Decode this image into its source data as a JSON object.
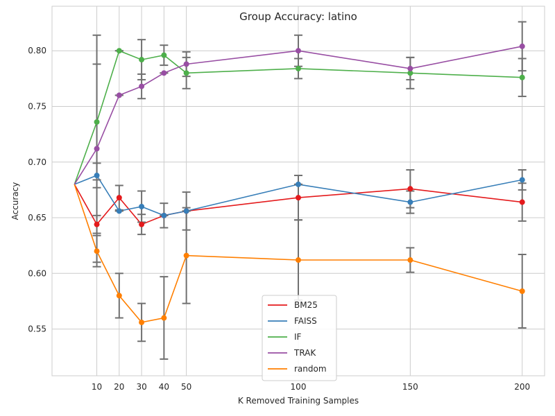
{
  "chart_data": {
    "type": "line",
    "title": "Group Accuracy: latino",
    "xlabel": "K Removed Training Samples",
    "ylabel": "Accuracy",
    "x": [
      0,
      10,
      20,
      30,
      40,
      50,
      100,
      150,
      200
    ],
    "xticks": [
      10,
      20,
      30,
      40,
      50,
      100,
      150,
      200
    ],
    "xlim": [
      -10,
      210
    ],
    "ylim": [
      0.508,
      0.84
    ],
    "yticks": [
      0.55,
      0.6,
      0.65,
      0.7,
      0.75,
      0.8
    ],
    "ytick_labels": [
      "0.55",
      "0.60",
      "0.65",
      "0.70",
      "0.75",
      "0.80"
    ],
    "grid": true,
    "legend_position": "lower-center",
    "errorbar_color": "#707070",
    "series": [
      {
        "name": "BM25",
        "color": "#e41a1c",
        "values": [
          0.68,
          0.644,
          0.668,
          0.644,
          0.652,
          0.656,
          0.668,
          0.676,
          0.664
        ],
        "errors": [
          0,
          0.008,
          0.011,
          0.009,
          0.011,
          0.017,
          0.02,
          0.017,
          0.017
        ]
      },
      {
        "name": "FAISS",
        "color": "#377eb8",
        "values": [
          0.68,
          0.688,
          0.656,
          0.66,
          0.652,
          0.656,
          0.68,
          0.664,
          0.684
        ],
        "errors": [
          0,
          0.011,
          0.0,
          0.014,
          0.0,
          0.0,
          0.0,
          0.01,
          0.009
        ]
      },
      {
        "name": "IF",
        "color": "#4daf4a",
        "values": [
          0.68,
          0.736,
          0.8,
          0.792,
          0.796,
          0.78,
          0.784,
          0.78,
          0.776
        ],
        "errors": [
          0,
          0.052,
          0.0,
          0.018,
          0.009,
          0.014,
          0.009,
          0.014,
          0.017
        ]
      },
      {
        "name": "TRAK",
        "color": "#984ea3",
        "values": [
          0.68,
          0.712,
          0.76,
          0.768,
          0.78,
          0.788,
          0.8,
          0.784,
          0.804
        ],
        "errors": [
          0,
          0.102,
          0.0,
          0.011,
          0.0,
          0.011,
          0.014,
          0.01,
          0.022
        ]
      },
      {
        "name": "random",
        "color": "#ff7f00",
        "values": [
          0.68,
          0.62,
          0.58,
          0.556,
          0.56,
          0.616,
          0.612,
          0.612,
          0.584
        ],
        "errors": [
          0,
          0.014,
          0.02,
          0.017,
          0.037,
          0.043,
          0.036,
          0.011,
          0.033
        ]
      }
    ]
  }
}
